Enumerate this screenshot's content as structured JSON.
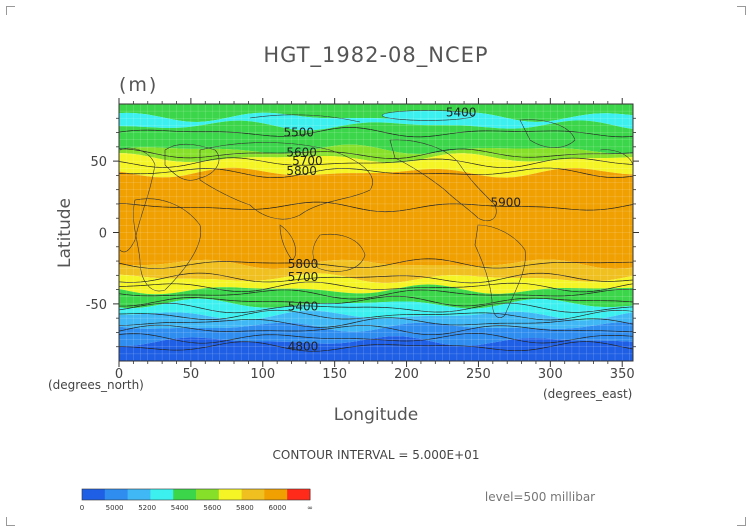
{
  "chart_data": {
    "type": "heatmap",
    "title": "HGT_1982-08_NCEP",
    "units": "(m)",
    "xlabel": "Longitude",
    "ylabel": "Latitude",
    "lat_unit_note": "(degrees_north)",
    "lon_unit_note": "(degrees_east)",
    "xlim": [
      0,
      357.5
    ],
    "ylim": [
      -90,
      90
    ],
    "x_ticks": [
      0,
      50,
      100,
      150,
      200,
      250,
      300,
      350
    ],
    "y_ticks": [
      -50,
      0,
      50
    ],
    "grid": true,
    "contour_interval": "CONTOUR INTERVAL = 5.000E+01",
    "level": "level=500 millibar",
    "colorbar": {
      "colors": [
        "#1f5fe6",
        "#2f8df0",
        "#40b8f5",
        "#3df0f0",
        "#3cd64a",
        "#86e02a",
        "#f5f526",
        "#f0c020",
        "#f0a000",
        "#ff2a1a"
      ],
      "labels": [
        "0",
        "5000",
        "5200",
        "5400",
        "5600",
        "5800",
        "6000",
        "∞"
      ],
      "label_positions": [
        0,
        1,
        2,
        3,
        4,
        5,
        6,
        7
      ]
    },
    "bands": [
      {
        "lat_top": 90,
        "lat_bottom": 81,
        "level": 5250,
        "color": "#3cd64a"
      },
      {
        "lat_top": 81,
        "lat_bottom": 75,
        "level": 5400,
        "color": "#3df0f0"
      },
      {
        "lat_top": 75,
        "lat_bottom": 58,
        "level": 5500,
        "color": "#3cd64a"
      },
      {
        "lat_top": 58,
        "lat_bottom": 52,
        "level": 5650,
        "color": "#86e02a"
      },
      {
        "lat_top": 52,
        "lat_bottom": 42,
        "level": 5750,
        "color": "#f5f526"
      },
      {
        "lat_top": 42,
        "lat_bottom": -22,
        "level": 5850,
        "color": "#f0a000"
      },
      {
        "lat_top": -22,
        "lat_bottom": -32,
        "level": 5750,
        "color": "#f0c020"
      },
      {
        "lat_top": -32,
        "lat_bottom": -40,
        "level": 5650,
        "color": "#f5f526"
      },
      {
        "lat_top": -40,
        "lat_bottom": -50,
        "level": 5500,
        "color": "#3cd64a"
      },
      {
        "lat_top": -50,
        "lat_bottom": -58,
        "level": 5350,
        "color": "#3df0f0"
      },
      {
        "lat_top": -58,
        "lat_bottom": -66,
        "level": 5200,
        "color": "#40b8f5"
      },
      {
        "lat_top": -66,
        "lat_bottom": -76,
        "level": 5050,
        "color": "#2f8df0"
      },
      {
        "lat_top": -76,
        "lat_bottom": -90,
        "level": 4900,
        "color": "#1f5fe6"
      }
    ],
    "contours": [
      {
        "level": 5500,
        "lat": 70
      },
      {
        "level": 5600,
        "lat": 55
      },
      {
        "level": 5700,
        "lat": 49
      },
      {
        "level": 5800,
        "lat": 42
      },
      {
        "level": 5900,
        "lat": 18
      },
      {
        "level": 5800,
        "lat": -22
      },
      {
        "level": 5700,
        "lat": -32
      },
      {
        "level": 5600,
        "lat": -38
      },
      {
        "level": 5500,
        "lat": -43
      },
      {
        "level": 5400,
        "lat": -48
      },
      {
        "level": 5300,
        "lat": -53
      },
      {
        "level": 5200,
        "lat": -58
      },
      {
        "level": 5100,
        "lat": -63
      },
      {
        "level": 5000,
        "lat": -68
      },
      {
        "level": 4900,
        "lat": -74
      },
      {
        "level": 4800,
        "lat": -80
      }
    ],
    "contour_labels": [
      {
        "text": "5400",
        "lon": 238,
        "lat": 84
      },
      {
        "text": "5500",
        "lon": 125,
        "lat": 70
      },
      {
        "text": "5600",
        "lon": 127,
        "lat": 56
      },
      {
        "text": "5700",
        "lon": 131,
        "lat": 50
      },
      {
        "text": "5800",
        "lon": 127,
        "lat": 43
      },
      {
        "text": "5900",
        "lon": 269,
        "lat": 21
      },
      {
        "text": "5800",
        "lon": 128,
        "lat": -22
      },
      {
        "text": "5700",
        "lon": 128,
        "lat": -31
      },
      {
        "text": "5400",
        "lon": 128,
        "lat": -52
      },
      {
        "text": "4800",
        "lon": 128,
        "lat": -80
      }
    ]
  }
}
